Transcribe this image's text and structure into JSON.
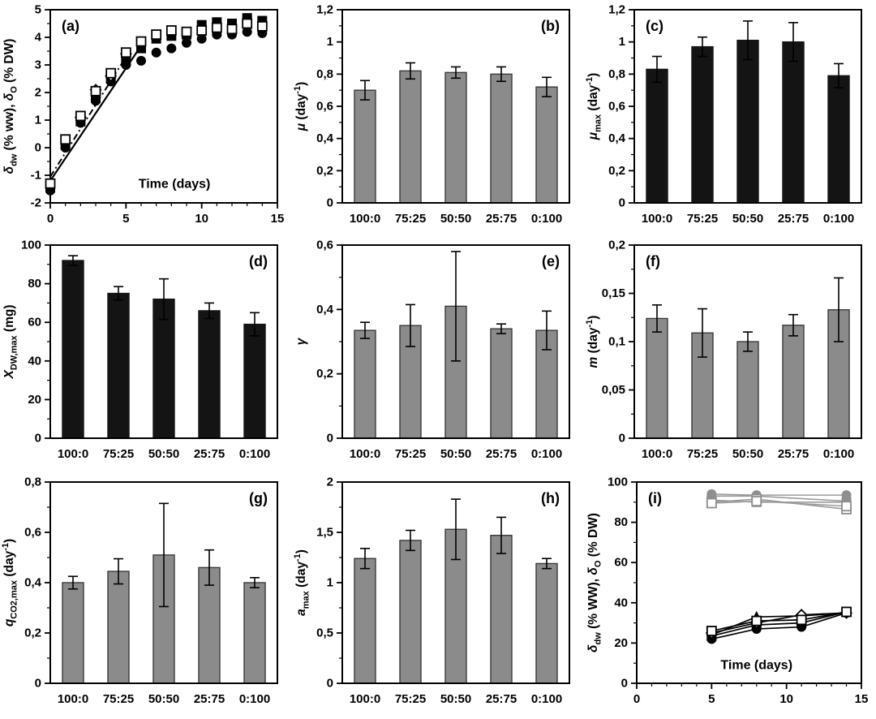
{
  "figure_title": "multi-panel-growth-and-kinetics-figure",
  "palette": {
    "axis": "#000000",
    "bar_gray": "#8b8b8b",
    "bar_gray_stroke": "#3a3a3a",
    "bar_black": "#141414",
    "gray_series": "#8f8f8f",
    "gray_line": "#9b9b9b",
    "black_series": "#000000",
    "background": "#ffffff"
  },
  "chart_data": [
    {
      "id": "a",
      "letter": "(a)",
      "letter_pos": "tl",
      "type": "scatter",
      "xlabel": "Time (days)",
      "xlabel_at": [
        8.2,
        -1.45
      ],
      "ylabel": [
        [
          "i",
          "δ"
        ],
        [
          "sub",
          "dw"
        ],
        [
          "n",
          " (% ww), "
        ],
        [
          "i",
          "δ"
        ],
        [
          "sub",
          "O"
        ],
        [
          "n",
          " (% DW)"
        ]
      ],
      "xlim": [
        0,
        15
      ],
      "ylim": [
        -2,
        5
      ],
      "xticks": [
        0,
        5,
        10,
        15
      ],
      "xtick_labels": [
        "0",
        "5",
        "10",
        "15"
      ],
      "xminor": 1,
      "yticks": [
        -2,
        -1,
        0,
        1,
        2,
        3,
        4,
        5
      ],
      "ytick_labels": [
        "-2",
        "-1",
        "0",
        "1",
        "2",
        "3",
        "4",
        "5"
      ],
      "yminor": 0.5,
      "series": [
        {
          "name": "fit-solid",
          "marker": null,
          "color": "#000000",
          "line": {
            "dash": null,
            "width": 2.2
          },
          "points": [
            [
              0,
              -1.2
            ],
            [
              6,
              3.7
            ]
          ]
        },
        {
          "name": "fit-dashdot",
          "marker": null,
          "color": "#000000",
          "line": {
            "dash": "8 4 2 4",
            "width": 2
          },
          "points": [
            [
              0,
              -1.05
            ],
            [
              5.3,
              3.55
            ]
          ]
        },
        {
          "name": "filled-circle",
          "marker": "circle",
          "color": "#000000",
          "line": null,
          "points": [
            [
              0,
              -1.55
            ],
            [
              1,
              0
            ],
            [
              2,
              0.9
            ],
            [
              3,
              1.7
            ],
            [
              4,
              2.4
            ],
            [
              5,
              3.0
            ],
            [
              6,
              3.15
            ],
            [
              7,
              3.45
            ],
            [
              8,
              3.6
            ],
            [
              9,
              3.8
            ],
            [
              10,
              3.95
            ],
            [
              11,
              4.1
            ],
            [
              12,
              4.1
            ],
            [
              13,
              4.2
            ],
            [
              14,
              4.15
            ]
          ]
        },
        {
          "name": "filled-square",
          "marker": "square",
          "color": "#000000",
          "line": null,
          "points": [
            [
              0,
              -1.45
            ],
            [
              1,
              0.1
            ],
            [
              2,
              0.95
            ],
            [
              3,
              1.8
            ],
            [
              4,
              2.5
            ],
            [
              5,
              3.15
            ],
            [
              6,
              3.6
            ],
            [
              7,
              3.95
            ],
            [
              8,
              4.05
            ],
            [
              9,
              4.1
            ],
            [
              10,
              4.45
            ],
            [
              11,
              4.55
            ],
            [
              12,
              4.5
            ],
            [
              13,
              4.7
            ],
            [
              14,
              4.6
            ]
          ]
        },
        {
          "name": "open-diamond",
          "marker": "odiamond",
          "color": "#000000",
          "line": null,
          "points": [
            [
              2,
              1.1
            ],
            [
              3,
              2.1
            ],
            [
              4,
              2.6
            ],
            [
              5,
              3.4
            ]
          ]
        },
        {
          "name": "open-square",
          "marker": "osquare",
          "color": "#000000",
          "line": null,
          "points": [
            [
              0,
              -1.3
            ],
            [
              1,
              0.3
            ],
            [
              2,
              1.15
            ],
            [
              3,
              2.05
            ],
            [
              4,
              2.7
            ],
            [
              5,
              3.45
            ],
            [
              6,
              3.85
            ],
            [
              7,
              4.1
            ],
            [
              8,
              4.25
            ],
            [
              9,
              4.2
            ],
            [
              10,
              4.25
            ],
            [
              11,
              4.35
            ],
            [
              12,
              4.3
            ],
            [
              13,
              4.5
            ],
            [
              14,
              4.4
            ]
          ]
        }
      ]
    },
    {
      "id": "b",
      "letter": "(b)",
      "letter_pos": "tr",
      "type": "bar",
      "ylabel": [
        [
          "i",
          "μ"
        ],
        [
          "n",
          " (day"
        ],
        [
          "sup",
          "-1"
        ],
        [
          "n",
          ")"
        ]
      ],
      "ylim": [
        0,
        1.2
      ],
      "yticks": [
        0,
        0.2,
        0.4,
        0.6,
        0.8,
        1,
        1.2
      ],
      "ytick_labels": [
        "0",
        "0,2",
        "0,4",
        "0,6",
        "0,8",
        "1",
        "1,2"
      ],
      "yminor": 0.1,
      "categories": [
        "100:0",
        "75:25",
        "50:50",
        "25:75",
        "0:100"
      ],
      "values": [
        0.7,
        0.82,
        0.81,
        0.8,
        0.72
      ],
      "errors": [
        0.06,
        0.05,
        0.035,
        0.045,
        0.06
      ],
      "bar_color": "bar_gray"
    },
    {
      "id": "c",
      "letter": "(c)",
      "letter_pos": "tl",
      "type": "bar",
      "ylabel": [
        [
          "i",
          "μ"
        ],
        [
          "sub",
          "max"
        ],
        [
          "n",
          " (day"
        ],
        [
          "sup",
          "-1"
        ],
        [
          "n",
          ")"
        ]
      ],
      "ylim": [
        0,
        1.2
      ],
      "yticks": [
        0,
        0.2,
        0.4,
        0.6,
        0.8,
        1,
        1.2
      ],
      "ytick_labels": [
        "0",
        "0,2",
        "0,4",
        "0,6",
        "0,8",
        "1",
        "1,2"
      ],
      "yminor": 0.1,
      "categories": [
        "100:0",
        "75:25",
        "50:50",
        "25:75",
        "0:100"
      ],
      "values": [
        0.83,
        0.97,
        1.01,
        1.0,
        0.79
      ],
      "errors": [
        0.08,
        0.06,
        0.12,
        0.12,
        0.075
      ],
      "bar_color": "bar_black"
    },
    {
      "id": "d",
      "letter": "(d)",
      "letter_pos": "tr",
      "type": "bar",
      "ylabel": [
        [
          "i",
          "X"
        ],
        [
          "sub",
          "DW,max"
        ],
        [
          "n",
          " (mg)"
        ]
      ],
      "ylim": [
        0,
        100
      ],
      "yticks": [
        0,
        20,
        40,
        60,
        80,
        100
      ],
      "ytick_labels": [
        "0",
        "20",
        "40",
        "60",
        "80",
        "100"
      ],
      "yminor": 10,
      "categories": [
        "100:0",
        "75:25",
        "50:50",
        "25:75",
        "0:100"
      ],
      "values": [
        92,
        75,
        72,
        66,
        59
      ],
      "errors": [
        2.5,
        3.5,
        10.5,
        4,
        6
      ],
      "bar_color": "bar_black"
    },
    {
      "id": "e",
      "letter": "(e)",
      "letter_pos": "tr",
      "type": "bar",
      "ylabel": [
        [
          "i",
          "γ"
        ]
      ],
      "ylim": [
        0,
        0.6
      ],
      "yticks": [
        0,
        0.2,
        0.4,
        0.6
      ],
      "ytick_labels": [
        "0",
        "0,2",
        "0,4",
        "0,6"
      ],
      "yminor": 0.1,
      "categories": [
        "100:0",
        "75:25",
        "50:50",
        "25:75",
        "0:100"
      ],
      "values": [
        0.335,
        0.35,
        0.41,
        0.34,
        0.335
      ],
      "errors": [
        0.025,
        0.065,
        0.17,
        0.015,
        0.06
      ],
      "bar_color": "bar_gray"
    },
    {
      "id": "f",
      "letter": "(f)",
      "letter_pos": "tl",
      "type": "bar",
      "ylabel": [
        [
          "i",
          "m"
        ],
        [
          "n",
          " (day"
        ],
        [
          "sup",
          "-1"
        ],
        [
          "n",
          ")"
        ]
      ],
      "ylim": [
        0,
        0.2
      ],
      "yticks": [
        0,
        0.05,
        0.1,
        0.15,
        0.2
      ],
      "ytick_labels": [
        "0",
        "0,05",
        "0,1",
        "0,15",
        "0,2"
      ],
      "yminor": 0.025,
      "categories": [
        "100:0",
        "75:25",
        "50:50",
        "25:75",
        "0:100"
      ],
      "values": [
        0.124,
        0.109,
        0.1,
        0.117,
        0.133
      ],
      "errors": [
        0.014,
        0.025,
        0.01,
        0.011,
        0.033
      ],
      "bar_color": "bar_gray"
    },
    {
      "id": "g",
      "letter": "(g)",
      "letter_pos": "tr",
      "type": "bar",
      "ylabel": [
        [
          "i",
          "q"
        ],
        [
          "sub",
          "CO2,max"
        ],
        [
          "n",
          " (day"
        ],
        [
          "sup",
          "-1"
        ],
        [
          "n",
          ")"
        ]
      ],
      "ylim": [
        0,
        0.8
      ],
      "yticks": [
        0,
        0.2,
        0.4,
        0.6,
        0.8
      ],
      "ytick_labels": [
        "0",
        "0,2",
        "0,4",
        "0,6",
        "0,8"
      ],
      "yminor": 0.1,
      "categories": [
        "100:0",
        "75:25",
        "50:50",
        "25:75",
        "0:100"
      ],
      "values": [
        0.4,
        0.445,
        0.51,
        0.46,
        0.4
      ],
      "errors": [
        0.025,
        0.05,
        0.205,
        0.07,
        0.02
      ],
      "bar_color": "bar_gray"
    },
    {
      "id": "h",
      "letter": "(h)",
      "letter_pos": "tr",
      "type": "bar",
      "ylabel": [
        [
          "i",
          "a"
        ],
        [
          "sub",
          "max"
        ],
        [
          "n",
          " (day"
        ],
        [
          "sup",
          "-1"
        ],
        [
          "n",
          ")"
        ]
      ],
      "ylim": [
        0,
        2
      ],
      "yticks": [
        0,
        0.5,
        1,
        1.5,
        2
      ],
      "ytick_labels": [
        "0",
        "0,5",
        "1",
        "1,5",
        "2"
      ],
      "yminor": 0.25,
      "categories": [
        "100:0",
        "75:25",
        "50:50",
        "25:75",
        "0:100"
      ],
      "values": [
        1.24,
        1.42,
        1.53,
        1.47,
        1.19
      ],
      "errors": [
        0.1,
        0.1,
        0.3,
        0.18,
        0.05
      ],
      "bar_color": "bar_gray"
    },
    {
      "id": "i",
      "letter": "(i)",
      "letter_pos": "tl",
      "type": "scatter",
      "xlabel": "Time (days)",
      "xlabel_at": [
        8,
        7
      ],
      "ylabel": [
        [
          "i",
          "δ"
        ],
        [
          "sub",
          "dw"
        ],
        [
          "n",
          " (% WW), "
        ],
        [
          "i",
          "δ"
        ],
        [
          "sub",
          "O"
        ],
        [
          "n",
          " (% DW)"
        ]
      ],
      "xlim": [
        0,
        15
      ],
      "ylim": [
        0,
        100
      ],
      "xticks": [
        0,
        5,
        10,
        15
      ],
      "xtick_labels": [
        "0",
        "5",
        "10",
        "15"
      ],
      "xminor": 1,
      "yticks": [
        0,
        20,
        40,
        60,
        80,
        100
      ],
      "ytick_labels": [
        "0",
        "20",
        "40",
        "60",
        "80",
        "100"
      ],
      "yminor": 10,
      "series": [
        {
          "name": "gray-circle-1",
          "marker": "circle",
          "color": "#8f8f8f",
          "line": {
            "dash": null,
            "width": 1.6,
            "color": "#9b9b9b"
          },
          "points": [
            [
              5,
              94
            ],
            [
              8,
              93.5
            ],
            [
              14,
              93.5
            ]
          ]
        },
        {
          "name": "gray-circle-2",
          "marker": "circle",
          "color": "#8f8f8f",
          "line": {
            "dash": null,
            "width": 1.6,
            "color": "#9b9b9b"
          },
          "points": [
            [
              5,
              93
            ],
            [
              8,
              93
            ],
            [
              14,
              90.5
            ]
          ]
        },
        {
          "name": "gray-square",
          "marker": "square",
          "color": "#8f8f8f",
          "line": {
            "dash": null,
            "width": 1.6,
            "color": "#9b9b9b"
          },
          "points": [
            [
              5,
              91
            ],
            [
              8,
              90
            ],
            [
              14,
              90
            ]
          ]
        },
        {
          "name": "gray-open-square-1",
          "marker": "osquare",
          "color": "#8f8f8f",
          "line": {
            "dash": null,
            "width": 1.6,
            "color": "#9b9b9b"
          },
          "points": [
            [
              5,
              90
            ],
            [
              8,
              91.5
            ],
            [
              14,
              86.5
            ]
          ]
        },
        {
          "name": "gray-open-square-2",
          "marker": "osquare",
          "color": "#8f8f8f",
          "line": {
            "dash": null,
            "width": 1.6,
            "color": "#9b9b9b"
          },
          "points": [
            [
              5,
              89.5
            ],
            [
              8,
              90.5
            ],
            [
              14,
              88
            ]
          ]
        },
        {
          "name": "black-circle",
          "marker": "circle",
          "color": "#000000",
          "line": {
            "dash": null,
            "width": 1.7,
            "color": "#000000"
          },
          "points": [
            [
              5,
              22
            ],
            [
              8,
              27
            ],
            [
              11,
              28
            ],
            [
              14,
              35
            ]
          ]
        },
        {
          "name": "black-square",
          "marker": "square",
          "color": "#000000",
          "line": {
            "dash": null,
            "width": 1.7,
            "color": "#000000"
          },
          "points": [
            [
              5,
              23.5
            ],
            [
              8,
              29
            ],
            [
              11,
              30
            ],
            [
              14,
              35.5
            ]
          ]
        },
        {
          "name": "black-triangle",
          "marker": "triangle",
          "color": "#000000",
          "line": {
            "dash": null,
            "width": 1.7,
            "color": "#000000"
          },
          "points": [
            [
              5,
              24
            ],
            [
              8,
              33
            ],
            [
              11,
              33.5
            ],
            [
              14,
              35
            ]
          ]
        },
        {
          "name": "black-open-diamond",
          "marker": "odiamond",
          "color": "#000000",
          "line": {
            "dash": null,
            "width": 1.7,
            "color": "#000000"
          },
          "points": [
            [
              5,
              25
            ],
            [
              8,
              30
            ],
            [
              11,
              34
            ],
            [
              14,
              35
            ]
          ]
        },
        {
          "name": "black-open-square",
          "marker": "osquare",
          "color": "#000000",
          "line": {
            "dash": null,
            "width": 1.7,
            "color": "#000000"
          },
          "points": [
            [
              5,
              26
            ],
            [
              8,
              31
            ],
            [
              11,
              31.5
            ],
            [
              14,
              35.5
            ]
          ]
        }
      ]
    }
  ]
}
